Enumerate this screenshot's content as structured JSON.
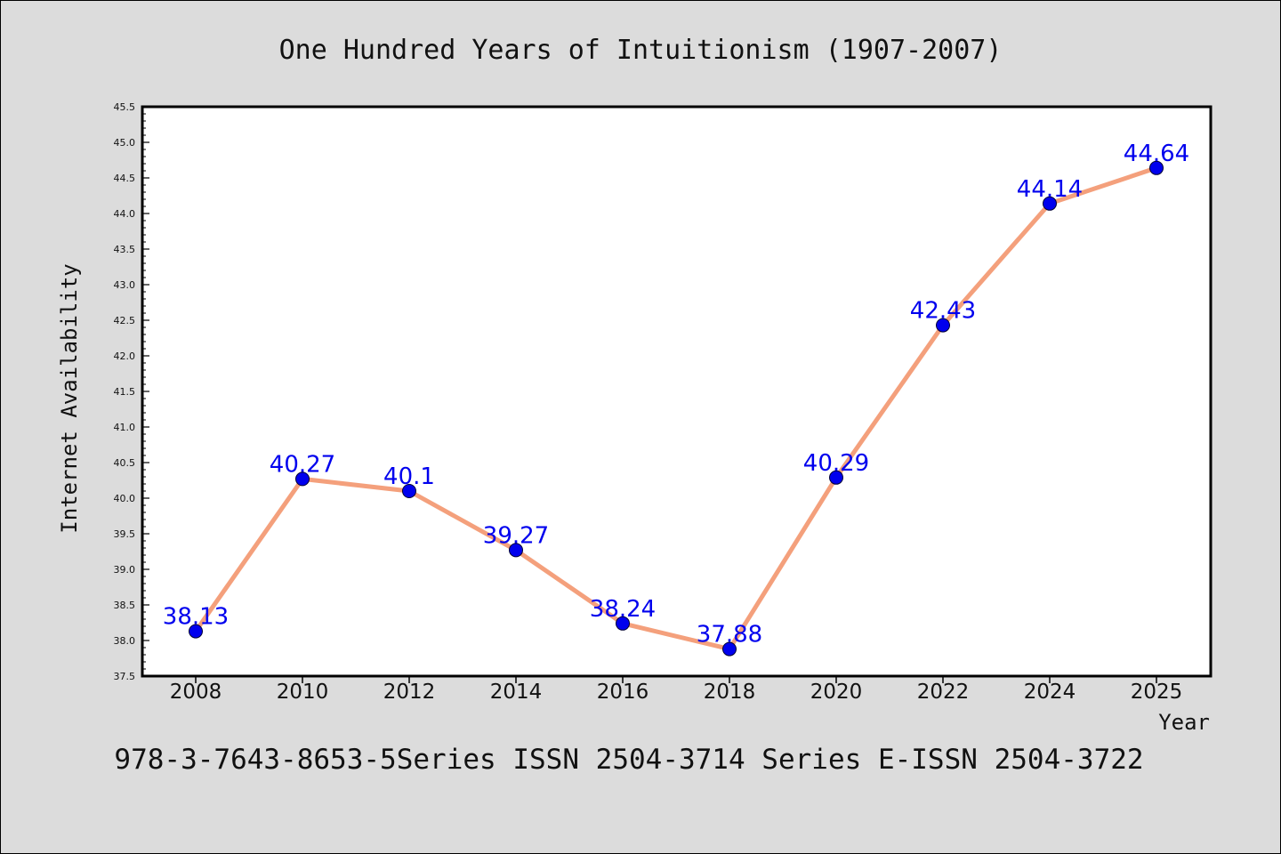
{
  "chart_data": {
    "type": "line",
    "title": "One Hundred Years of Intuitionism (1907-2007)",
    "xlabel": "Year",
    "ylabel": "Internet Availability",
    "x": [
      "2008",
      "2010",
      "2012",
      "2014",
      "2016",
      "2018",
      "2020",
      "2022",
      "2024",
      "2025"
    ],
    "series": [
      {
        "values": [
          38.13,
          40.27,
          40.1,
          39.27,
          38.24,
          37.88,
          40.29,
          42.43,
          44.14,
          44.64
        ],
        "labels": [
          "38.13",
          "40.27",
          "40.1",
          "39.27",
          "38.24",
          "37.88",
          "40.29",
          "42.43",
          "44.14",
          "44.64"
        ],
        "line_color": "#f4a07c",
        "marker_color": "#0000ee"
      }
    ],
    "ylim": [
      37.5,
      45.5
    ],
    "yticks": [
      "37.5",
      "38.0",
      "38.5",
      "39.0",
      "39.5",
      "40.0",
      "40.5",
      "41.0",
      "41.5",
      "42.0",
      "42.5",
      "43.0",
      "43.5",
      "44.0",
      "44.5",
      "45.0",
      "45.5"
    ],
    "grid": false,
    "legend": "none",
    "footer": "978-3-7643-8653-5Series ISSN 2504-3714 Series E-ISSN 2504-3722",
    "colors": {
      "background": "#dcdcdc",
      "plot_background": "#ffffff"
    }
  }
}
